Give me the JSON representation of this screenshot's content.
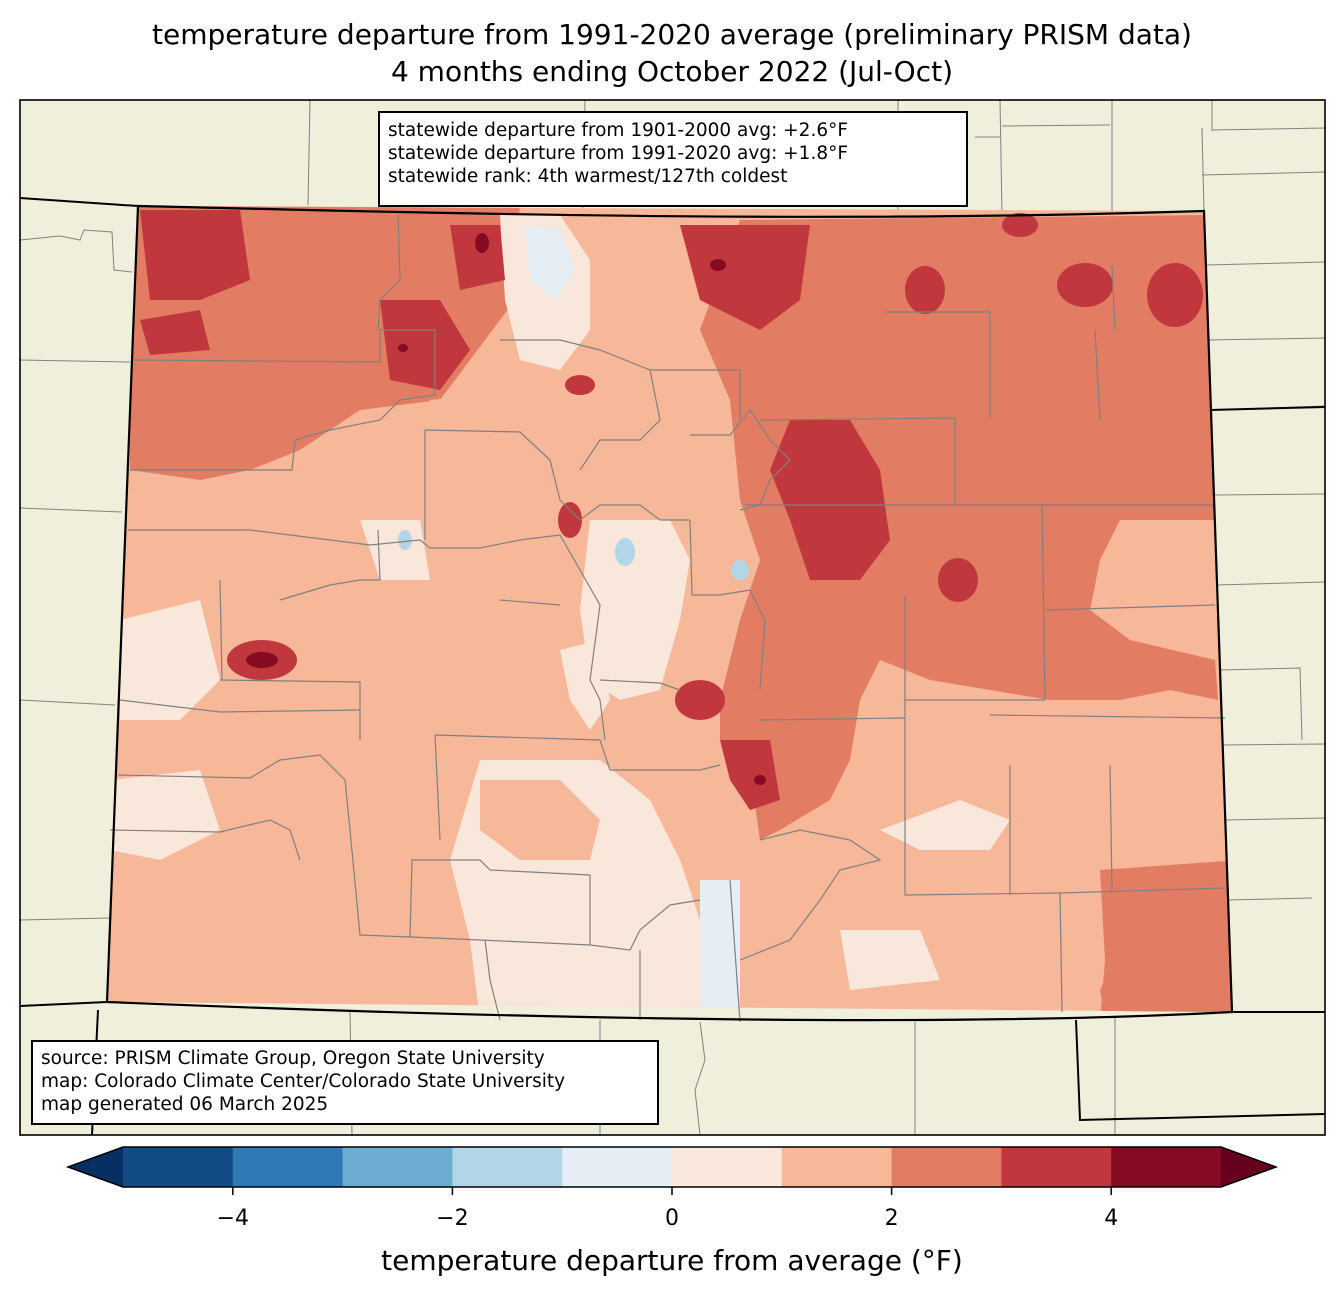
{
  "title": {
    "line1": "temperature departure from 1991-2020 average (preliminary PRISM data)",
    "line2": "4 months ending October 2022 (Jul-Oct)"
  },
  "stats_box": {
    "lines": [
      "statewide departure from 1901-2000 avg: +2.6°F",
      "statewide departure from 1991-2020 avg: +1.8°F",
      "statewide rank: 4th warmest/127th coldest"
    ]
  },
  "source_box": {
    "lines": [
      "source: PRISM Climate Group, Oregon State University",
      "map: Colorado Climate Center/Colorado State University",
      "map generated 06 March 2025"
    ]
  },
  "colorbar": {
    "label": "temperature departure from average (°F)",
    "ticks": [
      {
        "value": -4,
        "label": "−4"
      },
      {
        "value": -2,
        "label": "−2"
      },
      {
        "value": 0,
        "label": "0"
      },
      {
        "value": 2,
        "label": "2"
      },
      {
        "value": 4,
        "label": "4"
      }
    ],
    "range": [
      -5,
      5
    ],
    "bins": [
      {
        "from": -5,
        "to": -4,
        "color": "#134b87"
      },
      {
        "from": -4,
        "to": -3,
        "color": "#2f79b5"
      },
      {
        "from": -3,
        "to": -2,
        "color": "#6bacd0"
      },
      {
        "from": -2,
        "to": -1,
        "color": "#b2d5e7"
      },
      {
        "from": -1,
        "to": 0,
        "color": "#e4eef4"
      },
      {
        "from": 0,
        "to": 1,
        "color": "#fae7dc"
      },
      {
        "from": 1,
        "to": 2,
        "color": "#f7b799"
      },
      {
        "from": 2,
        "to": 3,
        "color": "#e27d64"
      },
      {
        "from": 3,
        "to": 4,
        "color": "#c0373d"
      },
      {
        "from": 4,
        "to": 5,
        "color": "#870a23"
      }
    ],
    "under_color": "#053061",
    "over_color": "#67001f"
  },
  "colors": {
    "background_land": "#f0efdc",
    "state_border": "#000000",
    "county_border": "#808080"
  }
}
